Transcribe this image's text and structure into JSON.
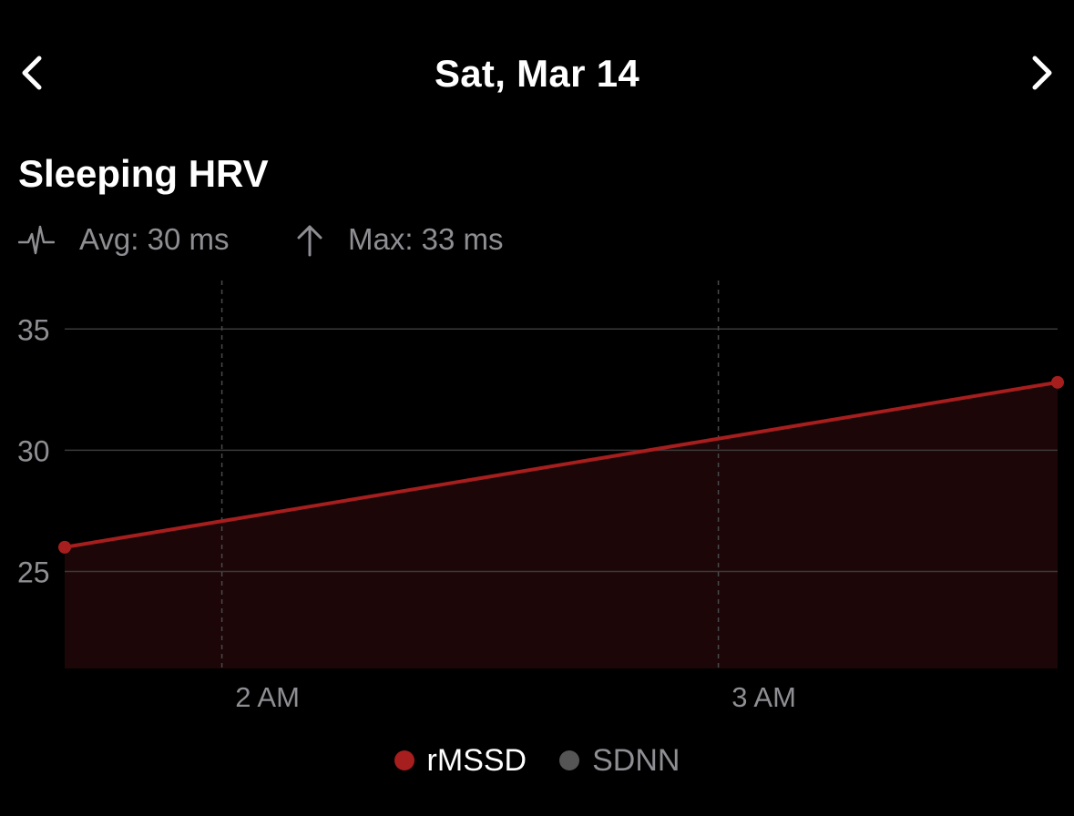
{
  "header": {
    "date": "Sat, Mar 14",
    "prev_icon": "chevron-left-icon",
    "next_icon": "chevron-right-icon"
  },
  "section": {
    "title": "Sleeping HRV"
  },
  "stats": {
    "avg_label": "Avg: 30 ms",
    "avg_icon": "heartbeat-icon",
    "max_label": "Max: 33 ms",
    "max_icon": "arrow-up-icon"
  },
  "colors": {
    "background": "#000000",
    "rmssd": "#a61e1e",
    "sdnn": "#555555",
    "area_fill": "#1c0607",
    "grid": "#3a3a3c",
    "muted_text": "#8e8e93"
  },
  "chart_data": {
    "type": "line",
    "y_ticks": [
      25,
      30,
      35
    ],
    "x_ticks": [
      "2 AM",
      "3 AM"
    ],
    "ylim": [
      21,
      37
    ],
    "grid": true,
    "legend_position": "bottom-center",
    "series": [
      {
        "name": "rMSSD",
        "color": "#a61e1e",
        "points": [
          {
            "time": "1:41 AM",
            "value": 26
          },
          {
            "time": "3:41 AM",
            "value": 32.8
          }
        ]
      },
      {
        "name": "SDNN",
        "color": "#555555",
        "points": []
      }
    ],
    "legend": [
      "rMSSD",
      "SDNN"
    ]
  }
}
